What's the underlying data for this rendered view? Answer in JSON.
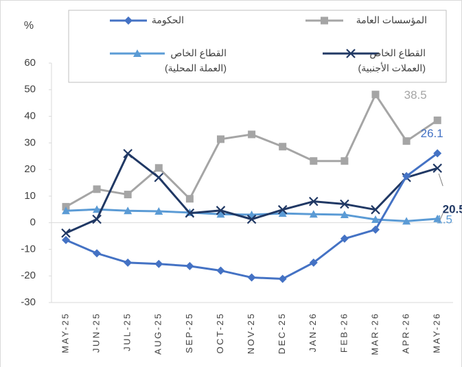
{
  "chart_data": {
    "type": "line",
    "y_axis_label": "%",
    "categories": [
      "MAY-25",
      "JUN-25",
      "JUL-25",
      "AUG-25",
      "SEP-25",
      "OCT-25",
      "NOV-25",
      "DEC-25",
      "JAN-26",
      "FEB-26",
      "MAR-26",
      "APR-26",
      "MAY-26"
    ],
    "series": [
      {
        "name": "الحكومة",
        "color": "#4472c4",
        "marker": "diamond",
        "values": [
          -6.5,
          -11.5,
          -15,
          -15.5,
          -16.3,
          -18,
          -20.6,
          -21.1,
          -15,
          -6,
          -2.6,
          17.5,
          26.1
        ]
      },
      {
        "name": "المؤسسات العامة",
        "color": "#a5a5a5",
        "marker": "square",
        "values": [
          6,
          12.6,
          10.6,
          20.6,
          9,
          31.4,
          33.2,
          28.6,
          23.2,
          23.2,
          48.2,
          30.7,
          38.5
        ]
      },
      {
        "name": "القطاع الخاص\n(العملة المحلية)",
        "color": "#5b9bd5",
        "marker": "triangle",
        "values": [
          4.5,
          5,
          4.5,
          4.3,
          3.8,
          3.2,
          3,
          3.5,
          3.2,
          3,
          1.2,
          0.6,
          1.5
        ]
      },
      {
        "name": "القطاع الخاص\n(العملات الأجنبية)",
        "color": "#203864",
        "marker": "x",
        "values": [
          -3.9,
          1.3,
          26,
          17,
          3.6,
          4.6,
          1.3,
          4.9,
          8,
          7,
          4.9,
          17,
          20.5
        ]
      }
    ],
    "ylim": [
      -30,
      60
    ],
    "yticks": [
      -30,
      -20,
      -10,
      0,
      10,
      20,
      30,
      40,
      50,
      60
    ],
    "grid": false
  }
}
